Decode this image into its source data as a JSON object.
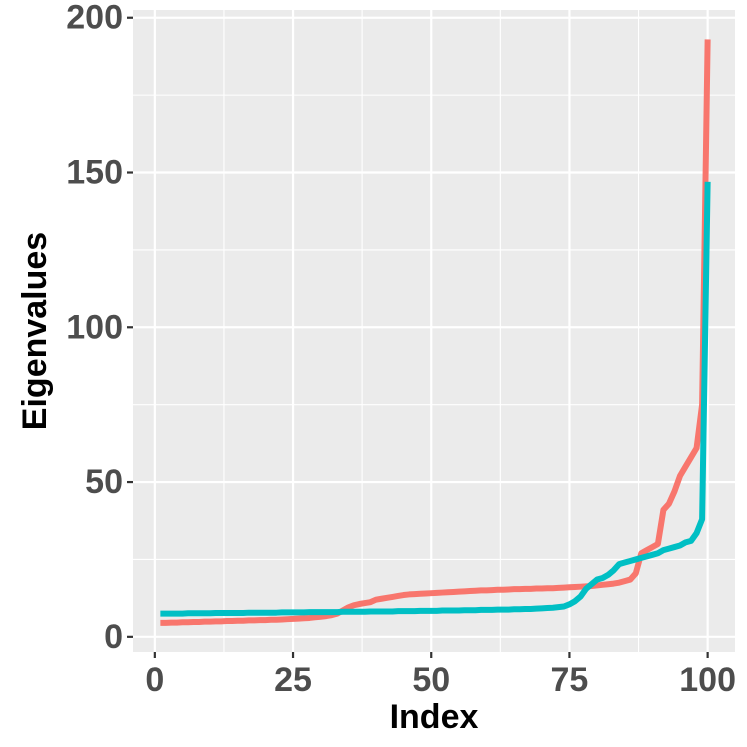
{
  "chart_data": {
    "type": "line",
    "x_label": "Index",
    "y_label": "Eigenvalues",
    "x": [
      1,
      2,
      3,
      4,
      5,
      6,
      7,
      8,
      9,
      10,
      11,
      12,
      13,
      14,
      15,
      16,
      17,
      18,
      19,
      20,
      21,
      22,
      23,
      24,
      25,
      26,
      27,
      28,
      29,
      30,
      31,
      32,
      33,
      34,
      35,
      36,
      37,
      38,
      39,
      40,
      41,
      42,
      43,
      44,
      45,
      46,
      47,
      48,
      49,
      50,
      51,
      52,
      53,
      54,
      55,
      56,
      57,
      58,
      59,
      60,
      61,
      62,
      63,
      64,
      65,
      66,
      67,
      68,
      69,
      70,
      71,
      72,
      73,
      74,
      75,
      76,
      77,
      78,
      79,
      80,
      81,
      82,
      83,
      84,
      85,
      86,
      87,
      88,
      89,
      90,
      91,
      92,
      93,
      94,
      95,
      96,
      97,
      98,
      99,
      100
    ],
    "series": [
      {
        "color": "#F8766D",
        "values": [
          4.5,
          4.5,
          4.6,
          4.6,
          4.7,
          4.7,
          4.8,
          4.8,
          4.9,
          4.9,
          5.0,
          5.0,
          5.1,
          5.1,
          5.2,
          5.2,
          5.3,
          5.3,
          5.4,
          5.4,
          5.5,
          5.5,
          5.6,
          5.7,
          5.8,
          5.9,
          6.0,
          6.1,
          6.3,
          6.5,
          6.7,
          7.0,
          7.5,
          8.5,
          9.5,
          10.2,
          10.6,
          10.9,
          11.2,
          12.0,
          12.3,
          12.6,
          12.9,
          13.2,
          13.5,
          13.7,
          13.8,
          13.9,
          14.0,
          14.1,
          14.2,
          14.3,
          14.4,
          14.5,
          14.6,
          14.7,
          14.8,
          14.9,
          15.0,
          15.0,
          15.1,
          15.2,
          15.2,
          15.3,
          15.4,
          15.4,
          15.5,
          15.5,
          15.6,
          15.6,
          15.7,
          15.7,
          15.8,
          15.9,
          16.0,
          16.1,
          16.2,
          16.3,
          16.4,
          16.6,
          16.8,
          17.0,
          17.2,
          17.5,
          18.0,
          18.5,
          20.5,
          27.0,
          28.0,
          29.0,
          30.0,
          41.0,
          43.0,
          47.0,
          52.0,
          55.0,
          58.0,
          61.0,
          75.0,
          193.0
        ]
      },
      {
        "color": "#00BFC4",
        "values": [
          7.5,
          7.5,
          7.5,
          7.5,
          7.5,
          7.6,
          7.6,
          7.6,
          7.6,
          7.6,
          7.7,
          7.7,
          7.7,
          7.7,
          7.7,
          7.7,
          7.8,
          7.8,
          7.8,
          7.8,
          7.8,
          7.8,
          7.9,
          7.9,
          7.9,
          7.9,
          7.9,
          8.0,
          8.0,
          8.0,
          8.0,
          8.0,
          8.0,
          8.1,
          8.1,
          8.1,
          8.1,
          8.1,
          8.2,
          8.2,
          8.2,
          8.2,
          8.2,
          8.3,
          8.3,
          8.3,
          8.3,
          8.4,
          8.4,
          8.4,
          8.4,
          8.5,
          8.5,
          8.5,
          8.5,
          8.6,
          8.6,
          8.6,
          8.7,
          8.7,
          8.7,
          8.8,
          8.8,
          8.8,
          8.9,
          8.9,
          9.0,
          9.0,
          9.1,
          9.2,
          9.3,
          9.4,
          9.6,
          9.8,
          10.5,
          11.5,
          13.0,
          15.5,
          17.0,
          18.5,
          19.0,
          20.0,
          21.5,
          23.5,
          24.0,
          24.5,
          25.0,
          25.5,
          26.0,
          26.5,
          27.0,
          28.0,
          28.5,
          29.0,
          29.5,
          30.5,
          31.0,
          33.5,
          38.0,
          147.0
        ]
      }
    ],
    "xlim": [
      -3.95,
      104.95
    ],
    "ylim": [
      -4.9,
      202.5
    ],
    "xticks": [
      0,
      25,
      50,
      75,
      100
    ],
    "yticks": [
      0,
      50,
      100,
      150,
      200
    ],
    "grid": true
  }
}
